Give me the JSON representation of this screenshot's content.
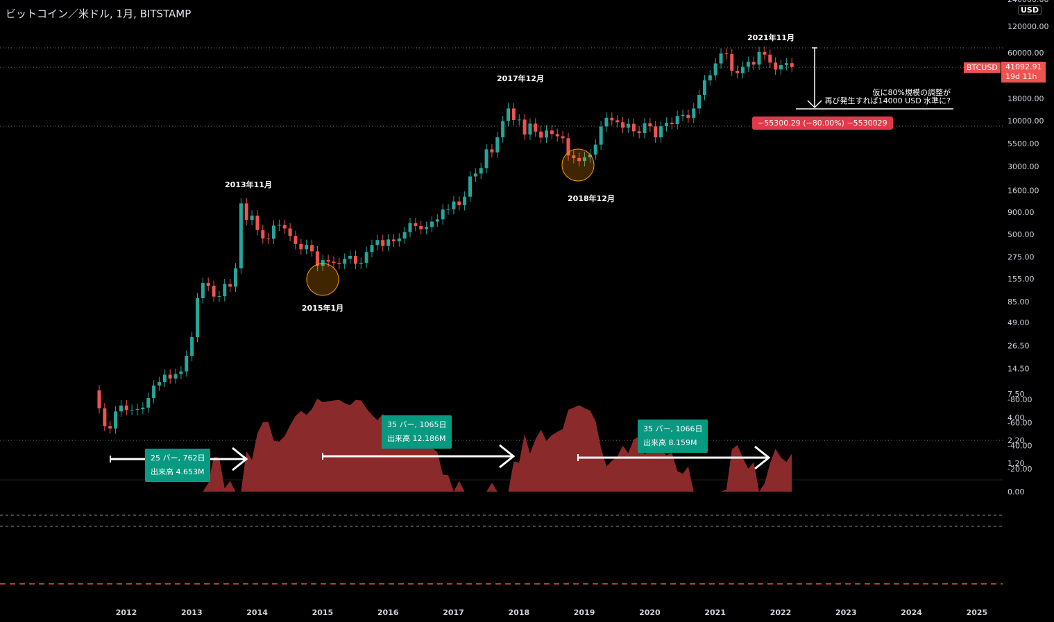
{
  "title": "ビットコイン／米ドル, 1月, BITSTAMP",
  "currency": "USD",
  "symbol_tag": "BTCUSD",
  "last_price": "41092.91",
  "countdown": "19d 11h",
  "colors": {
    "up": "#26a69a",
    "down": "#ef5350",
    "drawdown": "#8b2a2a",
    "accent_red": "#e03a4a",
    "box": "#089981"
  },
  "annotation": {
    "line1": "仮に80%規模の調整が",
    "line2": "再び発生すれば14000 USD 水準に?",
    "measure": "−55300.29 (−80.00%) −5530029"
  },
  "labels": [
    "2013年11月",
    "2015年1月",
    "2017年12月",
    "2018年12月",
    "2021年11月"
  ],
  "ranges": [
    {
      "l1": "25 バー, 762日",
      "l2": "出来高 4.653M"
    },
    {
      "l1": "35 バー, 1065日",
      "l2": "出来高 12.186M"
    },
    {
      "l1": "35 バー, 1066日",
      "l2": "出来高 8.159M"
    }
  ],
  "chart_data": {
    "type": "candlestick",
    "scale": "log",
    "start": "2011-09",
    "interval": "1M",
    "closes": [
      5.1,
      3.2,
      3.0,
      4.7,
      5.5,
      4.9,
      4.9,
      5.0,
      5.2,
      6.7,
      9.3,
      10.2,
      12.4,
      11.2,
      12.6,
      13.5,
      20.4,
      33.4,
      93,
      139,
      129,
      97,
      98,
      135,
      126,
      204,
      1130,
      732,
      820,
      560,
      450,
      445,
      630,
      640,
      585,
      480,
      388,
      338,
      378,
      320,
      218,
      254,
      244,
      236,
      230,
      263,
      284,
      230,
      236,
      314,
      377,
      430,
      368,
      437,
      416,
      448,
      531,
      673,
      624,
      573,
      608,
      700,
      742,
      963,
      970,
      1190,
      1080,
      1350,
      2300,
      2480,
      2870,
      4700,
      4340,
      6450,
      9900,
      13800,
      10200,
      10300,
      6940,
      9250,
      7500,
      6400,
      7730,
      7030,
      6630,
      6300,
      4000,
      3740,
      3450,
      3810,
      4100,
      5320,
      8570,
      10800,
      10100,
      9600,
      8300,
      9200,
      7550,
      7200,
      9350,
      8600,
      6440,
      8630,
      9460,
      9140,
      11340,
      11650,
      10780,
      13800,
      19700,
      28990,
      33100,
      45200,
      58800,
      57800,
      37300,
      35000,
      41500,
      47100,
      43800,
      61300,
      57000,
      46200,
      38500,
      43200,
      45500,
      41092.91
    ],
    "first_open": 8.2,
    "price_ticks": [
      "240000.00",
      "120000.00",
      "60000.00",
      "18000.00",
      "10000.00",
      "5500.00",
      "3000.00",
      "1600.00",
      "900.00",
      "500.00",
      "275.00",
      "155.00",
      "85.00",
      "49.00",
      "26.50",
      "14.50",
      "7.50",
      "4.00",
      "2.20",
      "1.20"
    ],
    "indicator_ticks": [
      "0.00",
      "-20.00",
      "-40.00",
      "-60.00",
      "-80.00"
    ],
    "x_ticks": [
      "2012",
      "2013",
      "2014",
      "2015",
      "2016",
      "2017",
      "2018",
      "2019",
      "2020",
      "2021",
      "2022",
      "2023",
      "2024",
      "2025"
    ]
  }
}
